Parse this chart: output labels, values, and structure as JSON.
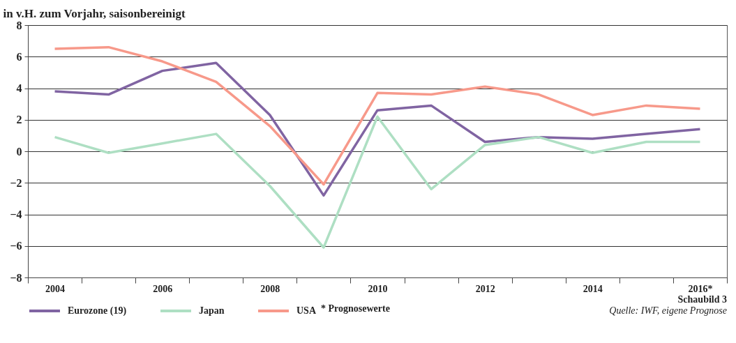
{
  "chart_data": {
    "type": "line",
    "ylabel": "in v.H. zum Vorjahr, saisonbereinigt",
    "categories": [
      "2004",
      null,
      "2006",
      null,
      "2008",
      null,
      "2010",
      null,
      "2012",
      null,
      "2014",
      null,
      "2016*"
    ],
    "series": [
      {
        "name": "Eurozone (19)",
        "color": "#8064a2",
        "values": [
          3.8,
          3.6,
          5.1,
          5.6,
          2.3,
          -2.8,
          2.6,
          2.9,
          0.6,
          0.9,
          0.8,
          1.1,
          1.4
        ]
      },
      {
        "name": "Japan",
        "color": "#aedfc3",
        "values": [
          0.9,
          -0.1,
          0.5,
          1.1,
          -2.2,
          -6.1,
          2.2,
          -2.4,
          0.4,
          0.9,
          -0.1,
          0.6,
          0.6
        ]
      },
      {
        "name": "USA",
        "color": "#f7998a",
        "values": [
          6.5,
          6.6,
          5.7,
          4.4,
          1.6,
          -2.1,
          3.7,
          3.6,
          4.1,
          3.6,
          2.3,
          2.9,
          2.7
        ]
      }
    ],
    "ylim": [
      -8,
      8
    ],
    "yticks": [
      -8,
      -6,
      -4,
      -2,
      0,
      2,
      4,
      6,
      8
    ],
    "grid": "y",
    "legend": "bottom",
    "annotations": [
      "* Prognosewerte",
      "Schaubild 3",
      "Quelle: IWF, eigene Prognose"
    ]
  }
}
